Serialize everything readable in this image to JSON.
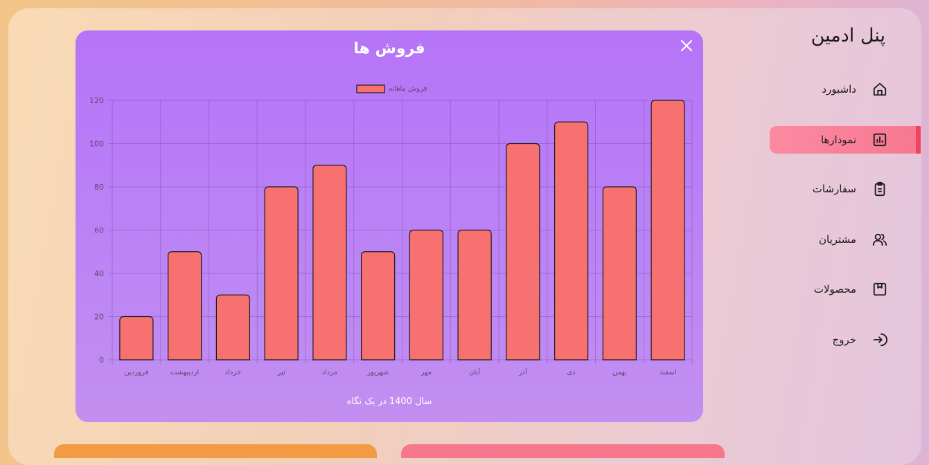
{
  "sidebar": {
    "brand": "پنل ادمین",
    "items": [
      {
        "label": "داشبورد",
        "icon": "home-icon",
        "active": false
      },
      {
        "label": "نمودارها",
        "icon": "chart-icon",
        "active": true
      },
      {
        "label": "سفارشات",
        "icon": "clipboard-icon",
        "active": false
      },
      {
        "label": "مشتریان",
        "icon": "users-icon",
        "active": false
      },
      {
        "label": "محصولات",
        "icon": "package-icon",
        "active": false
      },
      {
        "label": "خروج",
        "icon": "logout-icon",
        "active": false
      }
    ]
  },
  "modal": {
    "title": "فروش ها",
    "footer": "سال 1400 در یک نگاه",
    "close_icon": "close-icon"
  },
  "chart_data": {
    "type": "bar",
    "categories": [
      "فروردین",
      "اردیبهشت",
      "خرداد",
      "تیر",
      "مرداد",
      "شهریور",
      "مهر",
      "آبان",
      "آذر",
      "دی",
      "بهمن",
      "اسفند"
    ],
    "series": [
      {
        "name": "فروش ماهانه",
        "values": [
          20,
          50,
          30,
          80,
          90,
          50,
          60,
          60,
          100,
          110,
          80,
          120
        ],
        "color": "#f87171"
      }
    ],
    "ylim": [
      0,
      120
    ],
    "yticks": [
      0,
      20,
      40,
      60,
      80,
      100,
      120
    ],
    "grid": true,
    "legend": "top-center"
  },
  "colors": {
    "accent": "#f77891",
    "bar": "#f87171",
    "modal": "#b574f7"
  }
}
